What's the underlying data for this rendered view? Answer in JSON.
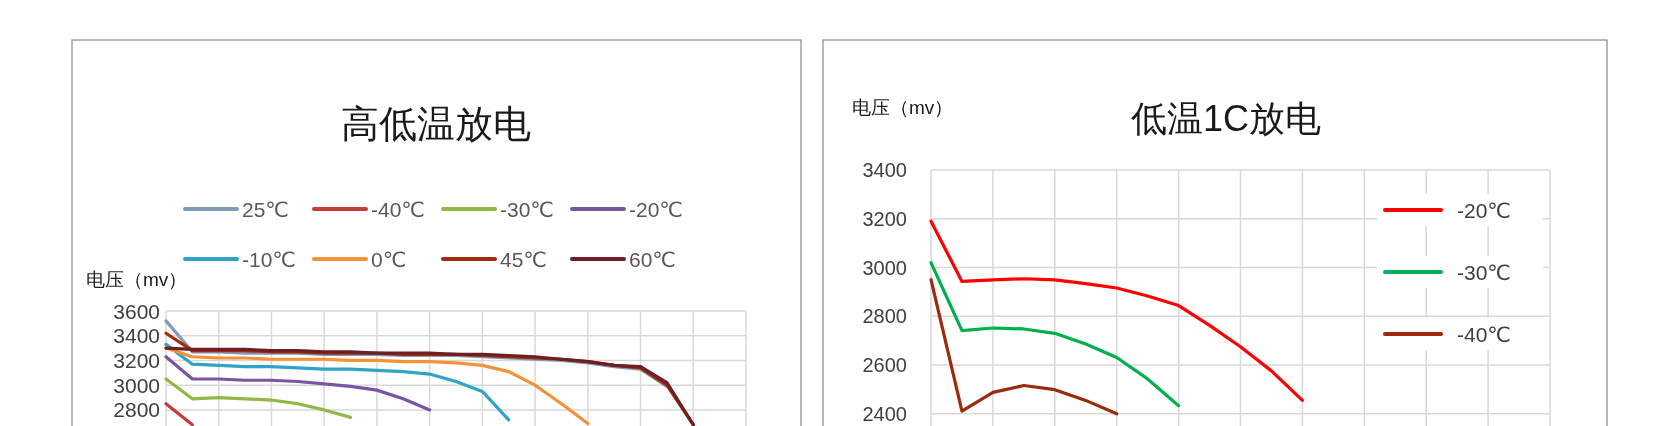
{
  "chart_data": [
    {
      "type": "line",
      "title": "高低温放电",
      "ylabel": "电压（mv）",
      "categories": [
        null,
        null,
        null,
        null,
        null,
        null,
        null,
        null,
        null,
        null,
        null,
        null,
        null,
        null,
        null,
        null,
        null,
        null,
        null,
        null,
        null,
        null,
        null
      ],
      "ylim": [
        2670,
        3600
      ],
      "yticks": [
        2800,
        3000,
        3200,
        3400,
        3600
      ],
      "grid": true,
      "legend": "top",
      "series": [
        {
          "name": "25℃",
          "color": "#7f9bb8",
          "values": [
            3520,
            3270,
            3270,
            3260,
            3260,
            3260,
            3250,
            3250,
            3250,
            3240,
            3240,
            3240,
            3230,
            3220,
            3210,
            3200,
            3180,
            3150,
            3130,
            2990,
            null,
            null,
            null
          ]
        },
        {
          "name": "-40℃",
          "color": "#c43c3a",
          "values": [
            2850,
            2680,
            null,
            null,
            null,
            null,
            null,
            null,
            null,
            null,
            null,
            null,
            null,
            null,
            null,
            null,
            null,
            null,
            null,
            null,
            null,
            null,
            null
          ]
        },
        {
          "name": "-30℃",
          "color": "#93b848",
          "values": [
            3050,
            2890,
            2900,
            2890,
            2880,
            2850,
            2800,
            2740,
            null,
            null,
            null,
            null,
            null,
            null,
            null,
            null,
            null,
            null,
            null,
            null,
            null,
            null,
            null
          ]
        },
        {
          "name": "-20℃",
          "color": "#7a55a4",
          "values": [
            3230,
            3050,
            3050,
            3040,
            3040,
            3030,
            3010,
            2990,
            2960,
            2890,
            2800,
            null,
            null,
            null,
            null,
            null,
            null,
            null,
            null,
            null,
            null,
            null,
            null
          ]
        },
        {
          "name": "-10℃",
          "color": "#2fa4c7",
          "values": [
            3330,
            3170,
            3160,
            3150,
            3150,
            3140,
            3130,
            3130,
            3120,
            3110,
            3090,
            3030,
            2950,
            2720,
            null,
            null,
            null,
            null,
            null,
            null,
            null,
            null,
            null
          ]
        },
        {
          "name": "0℃",
          "color": "#f39237",
          "values": [
            3300,
            3230,
            3220,
            3220,
            3210,
            3210,
            3210,
            3200,
            3200,
            3190,
            3190,
            3180,
            3160,
            3110,
            3000,
            2850,
            2690,
            null,
            null,
            null,
            null,
            null,
            null
          ]
        },
        {
          "name": "45℃",
          "color": "#a52a0d",
          "values": [
            3420,
            3280,
            3280,
            3280,
            3270,
            3270,
            3260,
            3260,
            3260,
            3250,
            3250,
            3250,
            3240,
            3230,
            3220,
            3210,
            3190,
            3160,
            3140,
            3000,
            2680,
            null,
            null
          ]
        },
        {
          "name": "60℃",
          "color": "#6e1f24",
          "values": [
            3300,
            3290,
            3290,
            3290,
            3280,
            3280,
            3270,
            3270,
            3260,
            3260,
            3260,
            3250,
            3250,
            3240,
            3230,
            3210,
            3190,
            3160,
            3150,
            3020,
            2680,
            null,
            null
          ]
        }
      ]
    },
    {
      "type": "line",
      "title": "低温1C放电",
      "ylabel": "电压（mv）",
      "categories": [
        null,
        null,
        null,
        null,
        null,
        null,
        null,
        null,
        null,
        null,
        null,
        null,
        null,
        null,
        null,
        null,
        null,
        null,
        null,
        null,
        null
      ],
      "ylim": [
        2350,
        3400
      ],
      "yticks": [
        2400,
        2600,
        2800,
        3000,
        3200,
        3400
      ],
      "grid": true,
      "legend": "right",
      "series": [
        {
          "name": "-20℃",
          "color": "#ff0000",
          "values": [
            3190,
            2943,
            2949,
            2954,
            2949,
            2934,
            2916,
            2883,
            2844,
            2763,
            2675,
            2576,
            2455,
            null,
            null,
            null,
            null,
            null,
            null,
            null,
            null
          ]
        },
        {
          "name": "-30℃",
          "color": "#00b050",
          "values": [
            3020,
            2741,
            2752,
            2748,
            2730,
            2686,
            2631,
            2543,
            2433,
            null,
            null,
            null,
            null,
            null,
            null,
            null,
            null,
            null,
            null,
            null,
            null
          ]
        },
        {
          "name": "-40℃",
          "color": "#9c2a0c",
          "values": [
            2950,
            2411,
            2488,
            2516,
            2499,
            2455,
            2400,
            null,
            null,
            null,
            null,
            null,
            null,
            null,
            null,
            null,
            null,
            null,
            null,
            null,
            null
          ]
        }
      ]
    }
  ]
}
